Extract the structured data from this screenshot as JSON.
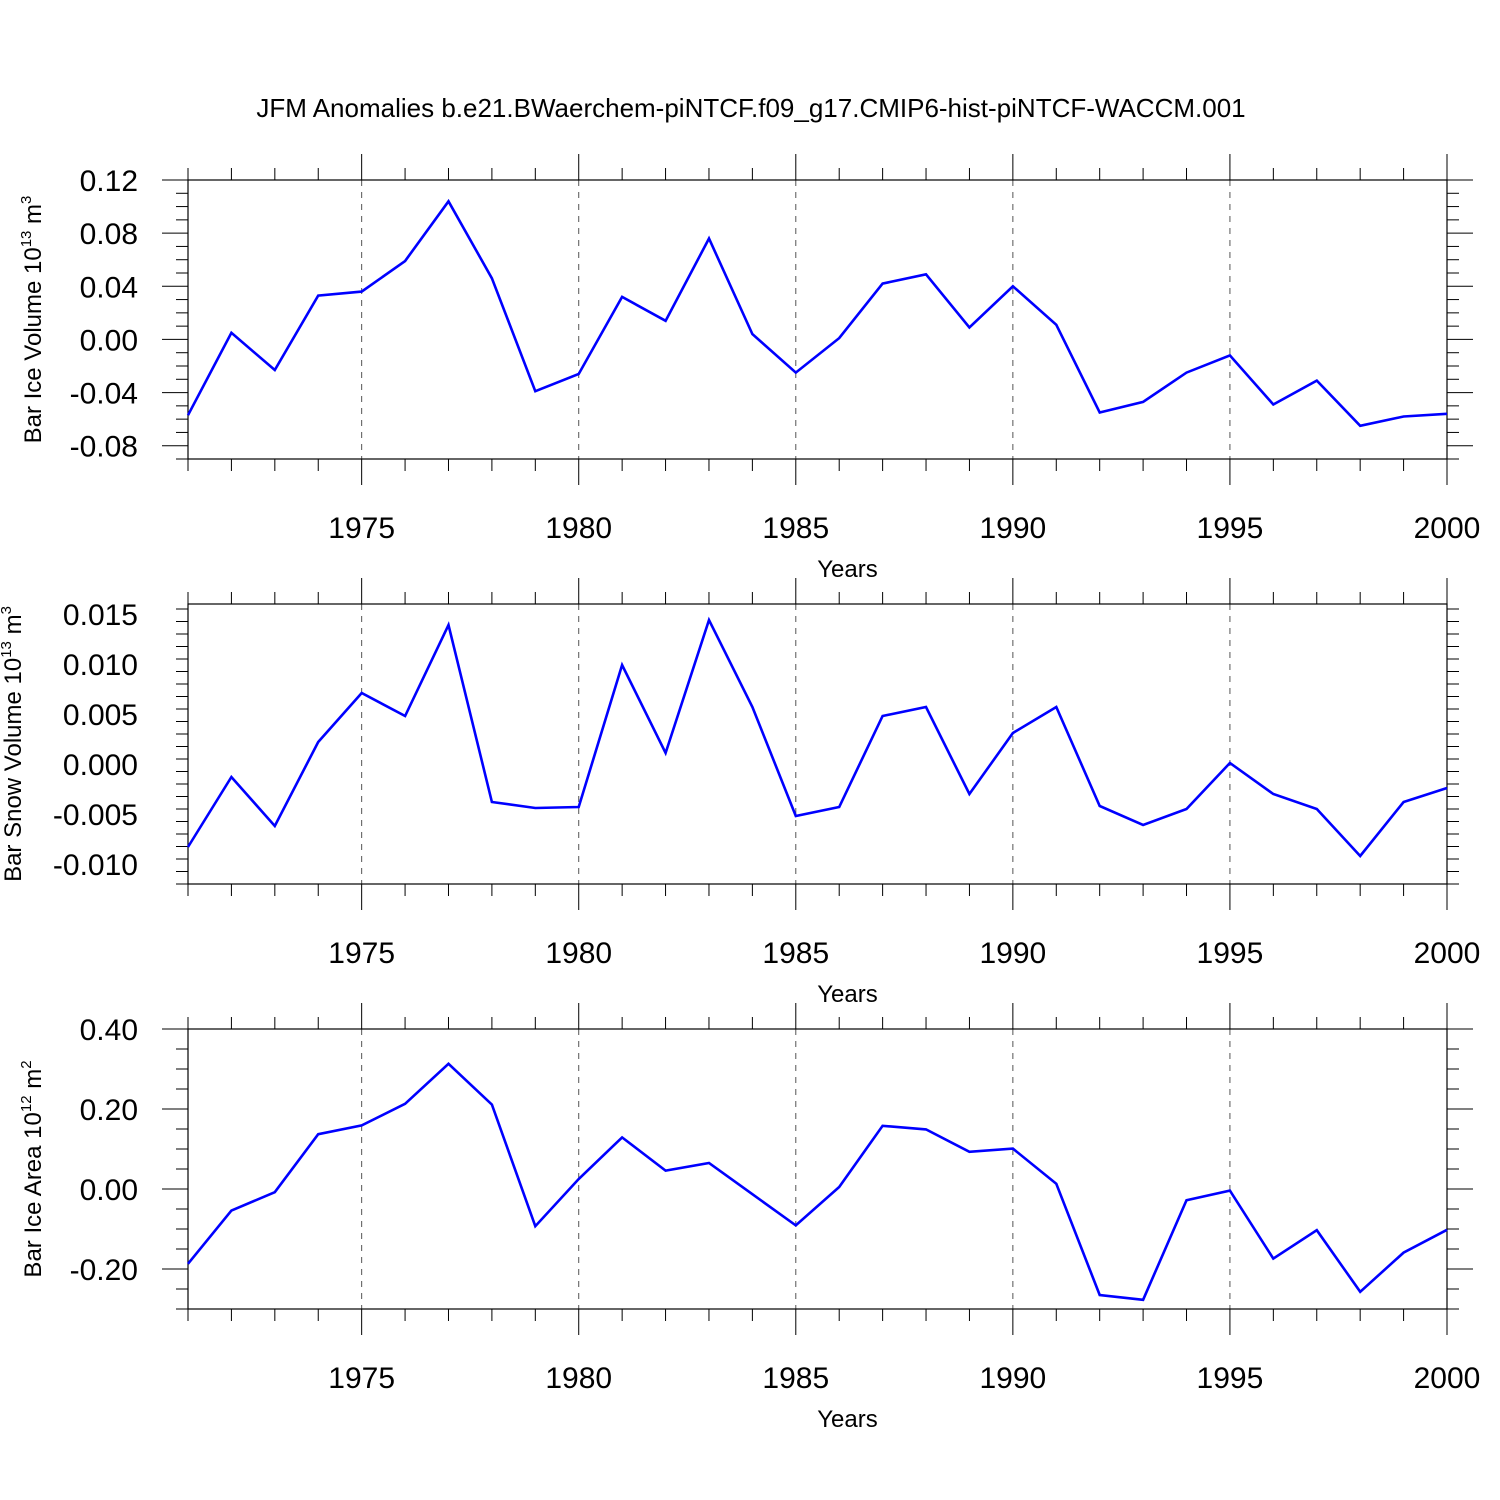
{
  "title": "JFM Anomalies b.e21.BWaerchem-piNTCF.f09_g17.CMIP6-hist-piNTCF-WACCM.001",
  "colors": {
    "line": "#0000ff",
    "axis": "#000000",
    "grid": "#555555",
    "background": "#ffffff"
  },
  "chart_data": [
    {
      "type": "line",
      "name": "ice-volume",
      "ylabel": {
        "text": "Bar Ice Volume 10",
        "exponent": "13",
        "unit": " m",
        "unit_exponent": "3"
      },
      "xlabel": "Years",
      "xlim": [
        1971,
        2000
      ],
      "ylim": [
        -0.09,
        0.12
      ],
      "xticks": [
        1975,
        1980,
        1985,
        1990,
        1995,
        2000
      ],
      "yticks": [
        -0.08,
        -0.04,
        0.0,
        0.04,
        0.08,
        0.12
      ],
      "ytick_labels": [
        "-0.08",
        "-0.04",
        "0.00",
        "0.04",
        "0.08",
        "0.12"
      ],
      "grid_x": [
        1975,
        1980,
        1985,
        1990,
        1995
      ],
      "x": [
        1971,
        1972,
        1973,
        1974,
        1975,
        1976,
        1977,
        1978,
        1979,
        1980,
        1981,
        1982,
        1983,
        1984,
        1985,
        1986,
        1987,
        1988,
        1989,
        1990,
        1991,
        1992,
        1993,
        1994,
        1995,
        1996,
        1997,
        1998,
        1999,
        2000
      ],
      "values": [
        -0.057,
        0.005,
        -0.023,
        0.033,
        0.036,
        0.059,
        0.104,
        0.046,
        -0.039,
        -0.026,
        0.032,
        0.014,
        0.076,
        0.004,
        -0.025,
        0.001,
        0.042,
        0.049,
        0.009,
        0.04,
        0.011,
        -0.055,
        -0.047,
        -0.025,
        -0.012,
        -0.049,
        -0.031,
        -0.065,
        -0.058,
        -0.056
      ]
    },
    {
      "type": "line",
      "name": "snow-volume",
      "ylabel": {
        "text": "Bar Snow Volume 10",
        "exponent": "13",
        "unit": " m",
        "unit_exponent": "3"
      },
      "xlabel": "Years",
      "xlim": [
        1971,
        2000
      ],
      "ylim": [
        -0.012,
        0.016
      ],
      "xticks": [
        1975,
        1980,
        1985,
        1990,
        1995,
        2000
      ],
      "yticks": [
        -0.01,
        -0.005,
        0.0,
        0.005,
        0.01,
        0.015
      ],
      "ytick_labels": [
        "-0.010",
        "-0.005",
        "0.000",
        "0.005",
        "0.010",
        "0.015"
      ],
      "grid_x": [
        1975,
        1980,
        1985,
        1990,
        1995
      ],
      "x": [
        1971,
        1972,
        1973,
        1974,
        1975,
        1976,
        1977,
        1978,
        1979,
        1980,
        1981,
        1982,
        1983,
        1984,
        1985,
        1986,
        1987,
        1988,
        1989,
        1990,
        1991,
        1992,
        1993,
        1994,
        1995,
        1996,
        1997,
        1998,
        1999,
        2000
      ],
      "values": [
        -0.0083,
        -0.0013,
        -0.0062,
        0.0022,
        0.0071,
        0.0048,
        0.0139,
        -0.0038,
        -0.0044,
        -0.0043,
        0.0099,
        0.0011,
        0.0144,
        0.0057,
        -0.0052,
        -0.0043,
        0.0048,
        0.0057,
        -0.003,
        0.0031,
        0.0057,
        -0.0042,
        -0.0061,
        -0.0045,
        0.0001,
        -0.003,
        -0.0045,
        -0.0092,
        -0.0038,
        -0.0024
      ]
    },
    {
      "type": "line",
      "name": "ice-area",
      "ylabel": {
        "text": "Bar Ice Area 10",
        "exponent": "12",
        "unit": " m",
        "unit_exponent": "2"
      },
      "xlabel": "Years",
      "xlim": [
        1971,
        2000
      ],
      "ylim": [
        -0.3,
        0.4
      ],
      "xticks": [
        1975,
        1980,
        1985,
        1990,
        1995,
        2000
      ],
      "yticks": [
        -0.2,
        0.0,
        0.2,
        0.4
      ],
      "ytick_labels": [
        "-0.20",
        "0.00",
        "0.20",
        "0.40"
      ],
      "grid_x": [
        1975,
        1980,
        1985,
        1990,
        1995
      ],
      "x": [
        1971,
        1972,
        1973,
        1974,
        1975,
        1976,
        1977,
        1978,
        1979,
        1980,
        1981,
        1982,
        1983,
        1984,
        1985,
        1986,
        1987,
        1988,
        1989,
        1990,
        1991,
        1992,
        1993,
        1994,
        1995,
        1996,
        1997,
        1998,
        1999,
        2000
      ],
      "values": [
        -0.187,
        -0.054,
        -0.008,
        0.137,
        0.159,
        0.213,
        0.313,
        0.211,
        -0.093,
        0.025,
        0.129,
        0.046,
        0.065,
        -0.013,
        -0.091,
        0.005,
        0.158,
        0.149,
        0.093,
        0.101,
        0.013,
        -0.265,
        -0.277,
        -0.028,
        -0.004,
        -0.174,
        -0.103,
        -0.257,
        -0.159,
        -0.102
      ]
    }
  ]
}
